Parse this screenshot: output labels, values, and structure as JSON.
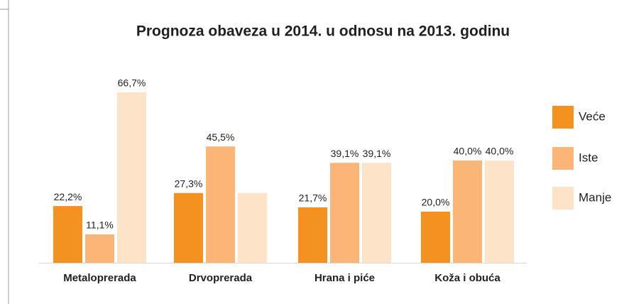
{
  "chart_data": {
    "type": "bar",
    "title": "Prognoza obaveza u 2014. u odnosu na 2013. godinu",
    "categories": [
      "Metaloprerada",
      "Drvoprerada",
      "Hrana i piće",
      "Koža i obuća"
    ],
    "series": [
      {
        "name": "Veće",
        "color": "#f39221",
        "values": [
          22.2,
          27.3,
          21.7,
          20.0
        ],
        "value_labels": [
          "22,2%",
          "27,3%",
          "21,7%",
          "20,0%"
        ]
      },
      {
        "name": "Iste",
        "color": "#fbb677",
        "values": [
          11.1,
          45.5,
          39.1,
          40.0
        ],
        "value_labels": [
          "11,1%",
          "45,5%",
          "39,1%",
          "40,0%"
        ]
      },
      {
        "name": "Manje",
        "color": "#fde3c8",
        "values": [
          66.7,
          27.3,
          39.1,
          40.0
        ],
        "value_labels": [
          "66,7%",
          null,
          "39,1%",
          "40,0%"
        ]
      }
    ],
    "ylim": [
      0,
      68
    ],
    "legend": "right"
  }
}
